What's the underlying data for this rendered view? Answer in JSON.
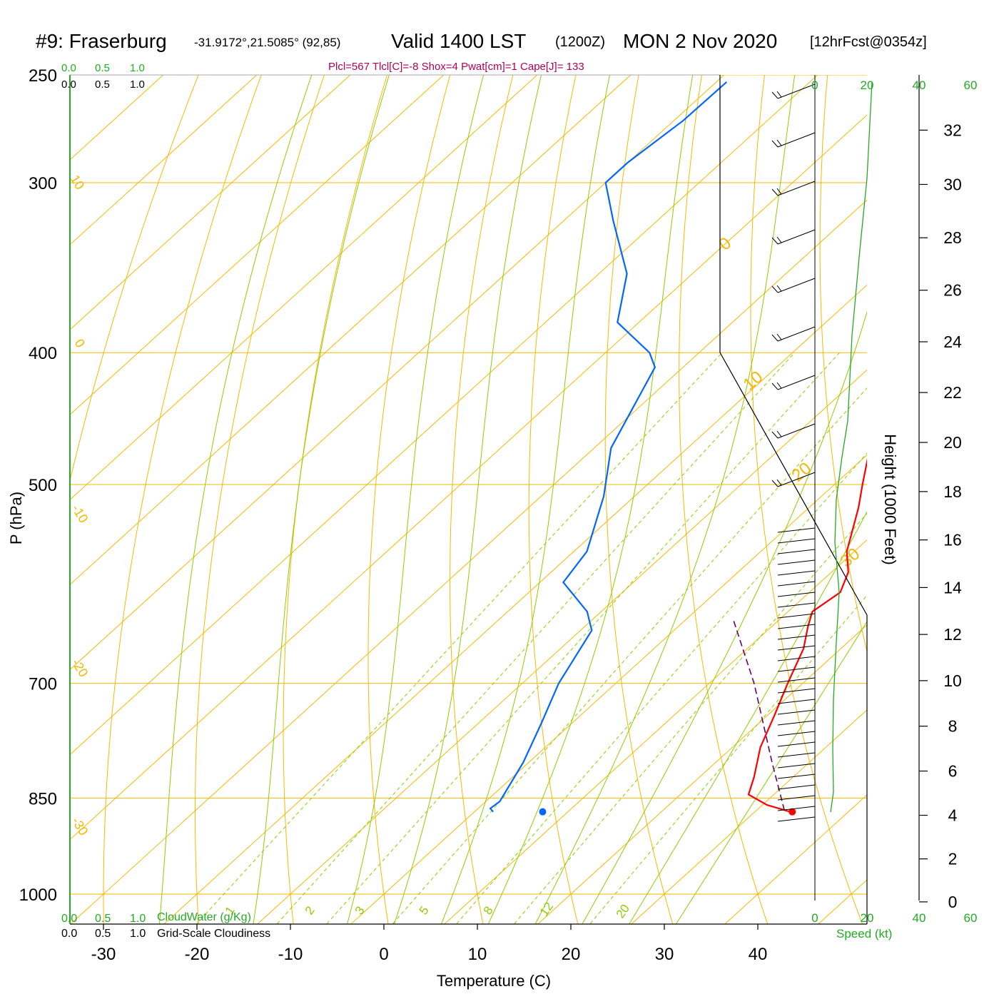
{
  "header": {
    "station": "#9: Fraserburg",
    "coords": "-31.9172°,21.5085° (92,85)",
    "valid": "Valid 1400 LST",
    "zulu": "(1200Z)",
    "date": "MON 2 Nov 2020",
    "forecast": "[12hrFcst@0354z]",
    "indices": "Plcl=567 Tlcl[C]=-8 Shox=4 Pwat[cm]=1 Cape[J]= 133"
  },
  "colors": {
    "temperature": "#ff0000",
    "dewpoint": "#0066ff",
    "isotherm": "#f5b800",
    "adiabat_dry": "#f5b800",
    "adiabat_moist": "#8fcc00",
    "mixing_ratio": "#8fcc00",
    "green_text": "#22aa22",
    "indices_text": "#b0005a",
    "parcel": "#660066"
  },
  "labels": {
    "cloudwater_top": [
      "0.0",
      "0.5",
      "1.0"
    ],
    "cloudiness_top": [
      "0.0",
      "0.5",
      "1.0"
    ],
    "cloudwater_bottom": [
      "0.0",
      "0.5",
      "1.0"
    ],
    "cloudwater_title": "CloudWater (g/Kg)",
    "cloudiness_bottom": [
      "0.0",
      "0.5",
      "1.0"
    ],
    "cloudiness_title": "Grid-Scale Cloudiness",
    "speed_ticks_top": [
      "0",
      "20",
      "40",
      "60"
    ],
    "speed_ticks_bottom": [
      "0",
      "20",
      "40",
      "60"
    ],
    "speed_title": "Speed (kt)",
    "height_title": "Height (1000 Feet)",
    "isotherm_labels": [
      {
        "text": "10"
      },
      {
        "text": "0"
      },
      {
        "text": "-10"
      },
      {
        "text": "-20"
      },
      {
        "text": "-30"
      },
      {
        "text": "0"
      },
      {
        "text": "10"
      },
      {
        "text": "20"
      },
      {
        "text": "30"
      }
    ],
    "mixing_ratio_labels": [
      "1",
      "2",
      "3",
      "5",
      "8",
      "12",
      "20"
    ]
  },
  "chart_data": {
    "type": "skew-t",
    "xlabel": "Temperature (C)",
    "ylabel": "P (hPa)",
    "x_ticks": [
      -30,
      -20,
      -10,
      0,
      10,
      20,
      30,
      40
    ],
    "y_ticks": [
      250,
      300,
      400,
      500,
      700,
      850,
      1000
    ],
    "xlim_at_1000hPa": [
      -34,
      47
    ],
    "ylim": [
      1000,
      250
    ],
    "height_ticks_kft": [
      0,
      2,
      4,
      6,
      8,
      10,
      12,
      14,
      16,
      18,
      20,
      22,
      24,
      26,
      28,
      30,
      32
    ],
    "temperature_profile": [
      {
        "p": 870,
        "t": 33.8
      },
      {
        "p": 860,
        "t": 30.5
      },
      {
        "p": 845,
        "t": 27.3
      },
      {
        "p": 820,
        "t": 25.8
      },
      {
        "p": 780,
        "t": 23.0
      },
      {
        "p": 740,
        "t": 20.8
      },
      {
        "p": 700,
        "t": 18.4
      },
      {
        "p": 660,
        "t": 16.0
      },
      {
        "p": 635,
        "t": 13.8
      },
      {
        "p": 620,
        "t": 12.6
      },
      {
        "p": 600,
        "t": 13.3
      },
      {
        "p": 580,
        "t": 11.8
      },
      {
        "p": 560,
        "t": 9.2
      },
      {
        "p": 520,
        "t": 5.3
      },
      {
        "p": 500,
        "t": 3.0
      },
      {
        "p": 450,
        "t": -3.0
      },
      {
        "p": 400,
        "t": -10.0
      },
      {
        "p": 350,
        "t": -17.4
      },
      {
        "p": 300,
        "t": -26.0
      },
      {
        "p": 270,
        "t": -33.0
      },
      {
        "p": 253,
        "t": -38.0
      }
    ],
    "dewpoint_profile": [
      {
        "p": 870,
        "t": 2.0
      },
      {
        "p": 865,
        "t": 1.3
      },
      {
        "p": 855,
        "t": 1.5
      },
      {
        "p": 800,
        "t": -0.6
      },
      {
        "p": 750,
        "t": -3.2
      },
      {
        "p": 700,
        "t": -6.1
      },
      {
        "p": 640,
        "t": -8.8
      },
      {
        "p": 620,
        "t": -11.5
      },
      {
        "p": 590,
        "t": -17.5
      },
      {
        "p": 560,
        "t": -18.6
      },
      {
        "p": 510,
        "t": -23.3
      },
      {
        "p": 470,
        "t": -28.2
      },
      {
        "p": 410,
        "t": -33.0
      },
      {
        "p": 400,
        "t": -35.3
      },
      {
        "p": 380,
        "t": -42.3
      },
      {
        "p": 350,
        "t": -47.0
      },
      {
        "p": 320,
        "t": -54.7
      },
      {
        "p": 300,
        "t": -60.0
      },
      {
        "p": 290,
        "t": -60.0
      },
      {
        "p": 270,
        "t": -59.0
      },
      {
        "p": 253,
        "t": -58.9
      }
    ],
    "parcel_path": [
      {
        "p": 868,
        "t": 33.0
      },
      {
        "p": 800,
        "t": 26.0
      },
      {
        "p": 700,
        "t": 14.8
      },
      {
        "p": 630,
        "t": 5.3
      }
    ],
    "surface_markers": [
      {
        "name": "surface temperature",
        "p": 870,
        "t": 34.0
      },
      {
        "name": "surface dewpoint",
        "p": 870,
        "t": 7.3
      }
    ]
  }
}
